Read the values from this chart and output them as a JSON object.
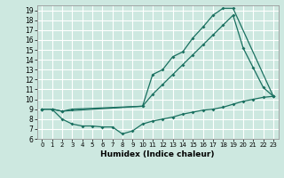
{
  "xlabel": "Humidex (Indice chaleur)",
  "bg_color": "#cde8e0",
  "grid_color": "#ffffff",
  "line_color": "#1a7060",
  "xlim": [
    -0.5,
    23.5
  ],
  "ylim": [
    6,
    19.5
  ],
  "xticks": [
    0,
    1,
    2,
    3,
    4,
    5,
    6,
    7,
    8,
    9,
    10,
    11,
    12,
    13,
    14,
    15,
    16,
    17,
    18,
    19,
    20,
    21,
    22,
    23
  ],
  "yticks": [
    6,
    7,
    8,
    9,
    10,
    11,
    12,
    13,
    14,
    15,
    16,
    17,
    18,
    19
  ],
  "line1_x": [
    0,
    1,
    2,
    10,
    11,
    12,
    13,
    14,
    15,
    16,
    17,
    18,
    19,
    23
  ],
  "line1_y": [
    9,
    9,
    8.8,
    9.3,
    12.5,
    13,
    14.3,
    14.8,
    16.2,
    17.3,
    18.5,
    19.2,
    19.2,
    10.3
  ],
  "line2_x": [
    0,
    1,
    2,
    3,
    10,
    11,
    12,
    13,
    14,
    15,
    16,
    17,
    18,
    19,
    20,
    21,
    22,
    23
  ],
  "line2_y": [
    9.0,
    9.0,
    8.8,
    9.0,
    9.3,
    10.5,
    11.5,
    12.5,
    13.5,
    14.5,
    15.5,
    16.5,
    17.5,
    18.5,
    15.2,
    13.2,
    11.2,
    10.3
  ],
  "line3_x": [
    0,
    1,
    2,
    3,
    4,
    5,
    6,
    7,
    8,
    9,
    10,
    11,
    12,
    13,
    14,
    15,
    16,
    17,
    18,
    19,
    20,
    21,
    22,
    23
  ],
  "line3_y": [
    9.0,
    9.0,
    8.0,
    7.5,
    7.3,
    7.3,
    7.2,
    7.2,
    6.5,
    6.8,
    7.5,
    7.8,
    8.0,
    8.2,
    8.5,
    8.7,
    8.9,
    9.0,
    9.2,
    9.5,
    9.8,
    10.0,
    10.2,
    10.3
  ]
}
